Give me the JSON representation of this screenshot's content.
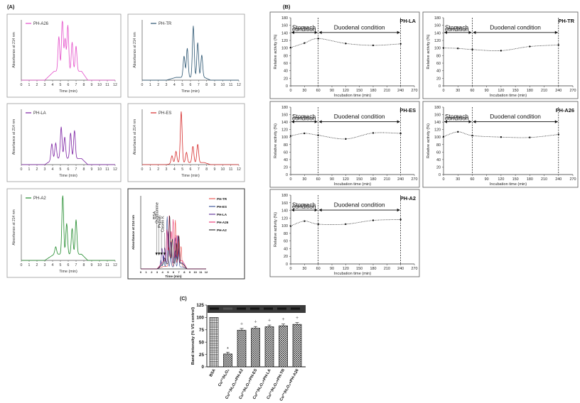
{
  "section_labels": {
    "a": "(A)",
    "b": "(B)",
    "c": "(C)"
  },
  "panel_a": {
    "x_ticks": [
      "0",
      "1",
      "2",
      "3",
      "4",
      "5",
      "6",
      "7",
      "8",
      "9",
      "10",
      "11",
      "12"
    ],
    "y_label": "Absorbance at 214 nm",
    "x_label": "Time (min)",
    "charts": [
      {
        "legend": "PH-A26",
        "color": "#e44dc9",
        "peaks": [
          [
            4.8,
            0.62
          ],
          [
            5.25,
            0.95
          ],
          [
            5.6,
            0.58
          ],
          [
            5.95,
            0.82
          ],
          [
            6.5,
            0.52
          ],
          [
            7.0,
            0.45
          ]
        ],
        "base": 0.16
      },
      {
        "legend": "PH-TR",
        "color": "#2a5470",
        "peaks": [
          [
            5.2,
            0.38
          ],
          [
            5.6,
            0.52
          ],
          [
            6.35,
            0.92
          ],
          [
            6.9,
            0.62
          ],
          [
            7.4,
            0.4
          ]
        ],
        "base": 0.05
      },
      {
        "legend": "PH-LA",
        "color": "#7b1fa2",
        "peaks": [
          [
            3.9,
            0.32
          ],
          [
            4.4,
            0.3
          ],
          [
            5.1,
            0.62
          ],
          [
            5.55,
            0.42
          ],
          [
            6.3,
            0.5
          ],
          [
            6.8,
            0.55
          ]
        ],
        "base": 0.12
      },
      {
        "legend": "PH-ES",
        "color": "#d62b2b",
        "peaks": [
          [
            3.7,
            0.15
          ],
          [
            4.2,
            0.22
          ],
          [
            4.85,
            1.0
          ],
          [
            5.5,
            0.2
          ],
          [
            6.3,
            0.32
          ],
          [
            6.9,
            0.36
          ]
        ],
        "base": 0.04
      },
      {
        "legend": "PH-A2",
        "color": "#1f8a2a",
        "peaks": [
          [
            4.4,
            0.12
          ],
          [
            5.3,
            0.98
          ],
          [
            5.8,
            0.5
          ],
          [
            6.5,
            0.42
          ],
          [
            7.0,
            0.56
          ]
        ],
        "base": 0.1
      }
    ],
    "overlay": {
      "y_label": "Absorbance at 214 nm",
      "x_label": "Time (min)",
      "x_ticks": [
        "0",
        "1",
        "2",
        "3",
        "4",
        "5",
        "6",
        "7",
        "8",
        "9",
        "10",
        "11",
        "12"
      ],
      "markers": [
        "BSA",
        "Ovalbumine",
        "Pepsin",
        "Casein K"
      ],
      "legend": [
        {
          "name": "PH-TR",
          "color": "#e53935"
        },
        {
          "name": "PH-ES",
          "color": "#1e3a8a"
        },
        {
          "name": "PH-LA",
          "color": "#4a148c"
        },
        {
          "name": "PH-A26",
          "color": "#e91e63"
        },
        {
          "name": "PH-A2",
          "color": "#111111"
        }
      ]
    }
  },
  "panel_b": {
    "y_label": "Relative activity (%)",
    "x_label": "Incubation time (min)",
    "y_ticks": [
      "0",
      "20",
      "40",
      "60",
      "80",
      "100",
      "120",
      "140",
      "160",
      "180"
    ],
    "x_ticks": [
      "0",
      "30",
      "60",
      "90",
      "120",
      "150",
      "180",
      "210",
      "240",
      "270"
    ],
    "stomach_label_1": "Stomach",
    "stomach_label_2": "condition",
    "duodenal_label": "Duodenal condition",
    "charts": [
      {
        "name": "PH-LA",
        "x": [
          0,
          30,
          60,
          120,
          180,
          240
        ],
        "y": [
          101,
          113,
          125,
          112,
          107,
          111
        ]
      },
      {
        "name": "PH-TR",
        "x": [
          0,
          30,
          60,
          120,
          180,
          240
        ],
        "y": [
          100,
          99,
          96,
          93,
          104,
          108
        ]
      },
      {
        "name": "PH-ES",
        "x": [
          0,
          30,
          60,
          120,
          180,
          240
        ],
        "y": [
          103,
          110,
          105,
          95,
          111,
          110
        ]
      },
      {
        "name": "PH-A26",
        "x": [
          0,
          30,
          60,
          120,
          180,
          240
        ],
        "y": [
          101,
          114,
          104,
          100,
          99,
          107
        ]
      },
      {
        "name": "PH-A2",
        "x": [
          0,
          30,
          60,
          120,
          180,
          240
        ],
        "y": [
          99,
          112,
          104,
          104,
          114,
          116
        ]
      }
    ]
  },
  "panel_c": {
    "y_label": "Band intensity (% VS control)",
    "y_ticks": [
      "0",
      "25",
      "50",
      "75",
      "100",
      "125"
    ],
    "bars": [
      {
        "label": "BSA",
        "value": 100,
        "mark": ""
      },
      {
        "label": "Cu²⁺/H₂O₂",
        "value": 26,
        "mark": "*"
      },
      {
        "label": "Cu²⁺/H₂O₂+PH-A2",
        "value": 74,
        "mark": "+"
      },
      {
        "label": "Cu²⁺/H₂O₂+PH-ES",
        "value": 78,
        "mark": "+"
      },
      {
        "label": "Cu²⁺/H₂O₂+PH-LA",
        "value": 81,
        "mark": "+"
      },
      {
        "label": "Cu²⁺/H₂O₂+PH-TR",
        "value": 83,
        "mark": "+"
      },
      {
        "label": "Cu²⁺/H₂O₂+PH-A26",
        "value": 86,
        "mark": "+"
      }
    ]
  }
}
